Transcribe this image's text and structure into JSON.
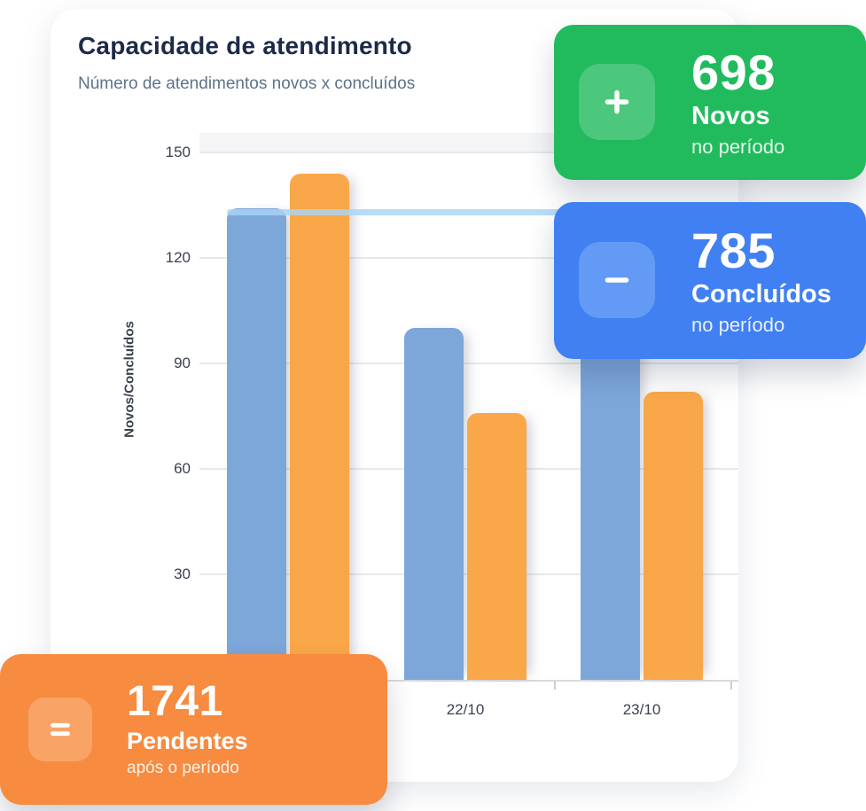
{
  "header": {
    "title": "Capacidade de atendimento",
    "subtitle": "Número de atendimentos novos x concluídos"
  },
  "chart_data": {
    "type": "bar",
    "title": "Capacidade de atendimento",
    "categories": [
      "",
      "22/10",
      "23/10"
    ],
    "series": [
      {
        "name": "Novos",
        "color": "#7da6d9",
        "values": [
          134,
          100,
          105
        ]
      },
      {
        "name": "Concluídos",
        "color": "#f9a748",
        "values": [
          144,
          76,
          82
        ]
      }
    ],
    "ylabel": "Novos/Concluídos",
    "xlabel": "",
    "yticks": [
      30,
      60,
      90,
      120,
      150
    ],
    "ylim": [
      0,
      150
    ],
    "grid": true,
    "legend": false,
    "reference_line": {
      "value": 133,
      "color": "#a8d4f5"
    },
    "notes": "first category label and top of third Novos bar are occluded by overlay cards"
  },
  "cards": {
    "novos": {
      "value": "698",
      "label": "Novos",
      "caption": "no período",
      "icon": "plus",
      "bg": "#21bb5e",
      "icon_bg": "#4cc87d"
    },
    "concluidos": {
      "value": "785",
      "label": "Concluídos",
      "caption": "no período",
      "icon": "minus",
      "bg": "#4080f2",
      "icon_bg": "#639af5"
    },
    "pendentes": {
      "value": "1741",
      "label": "Pendentes",
      "caption": "após o período",
      "icon": "equals",
      "bg": "#f78b40",
      "icon_bg": "#f9a466"
    }
  }
}
